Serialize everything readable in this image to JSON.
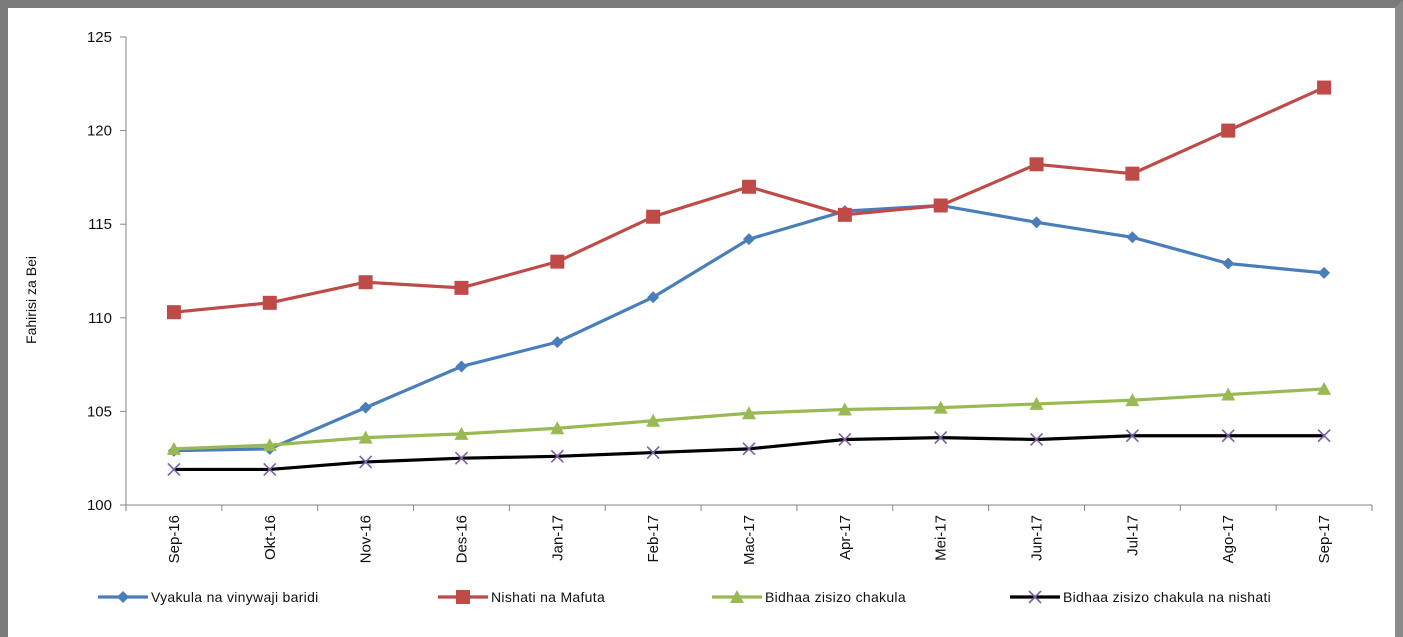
{
  "chart_data": {
    "type": "line",
    "title": "",
    "ylabel": "Fahirisi za Bei",
    "xlabel": "",
    "categories": [
      "Sep-16",
      "Okt-16",
      "Nov-16",
      "Des-16",
      "Jan-17",
      "Feb-17",
      "Mac-17",
      "Apr-17",
      "Mei-17",
      "Jun-17",
      "Jul-17",
      "Ago-17",
      "Sep-17"
    ],
    "ylim": [
      100,
      125
    ],
    "yticks": [
      100,
      105,
      110,
      115,
      120,
      125
    ],
    "grid": false,
    "legend_position": "bottom",
    "series": [
      {
        "name": "Vyakula na vinywaji baridi",
        "color": "#4a7ebb",
        "marker": "diamond",
        "values": [
          102.9,
          103.0,
          105.2,
          107.4,
          108.7,
          111.1,
          114.2,
          115.7,
          116.0,
          115.1,
          114.3,
          112.9,
          112.4
        ]
      },
      {
        "name": "Nishati na Mafuta",
        "color": "#be4b48",
        "marker": "square",
        "values": [
          110.3,
          110.8,
          111.9,
          111.6,
          113.0,
          115.4,
          117.0,
          115.5,
          116.0,
          118.2,
          117.7,
          120.0,
          122.3
        ]
      },
      {
        "name": "Bidhaa zisizo chakula",
        "color": "#98b954",
        "marker": "triangle",
        "values": [
          103.0,
          103.2,
          103.6,
          103.8,
          104.1,
          104.5,
          104.9,
          105.1,
          105.2,
          105.4,
          105.6,
          105.9,
          106.2
        ]
      },
      {
        "name": "Bidhaa zisizo chakula na nishati",
        "color": "#000000",
        "marker": "x",
        "values": [
          101.9,
          101.9,
          102.3,
          102.5,
          102.6,
          102.8,
          103.0,
          103.5,
          103.6,
          103.5,
          103.7,
          103.7,
          103.7
        ]
      }
    ]
  }
}
